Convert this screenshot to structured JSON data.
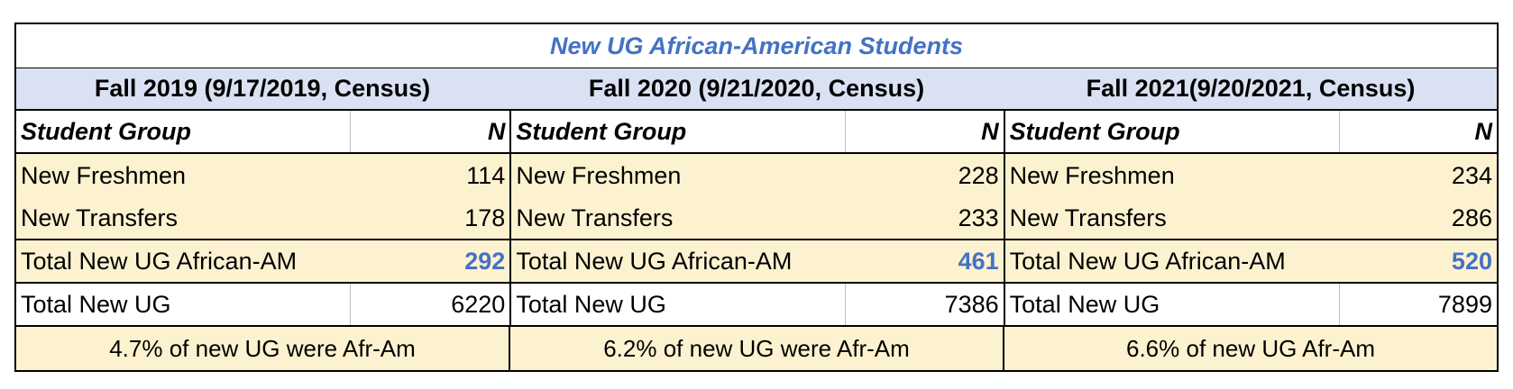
{
  "table": {
    "title": "New UG African-American Students",
    "columns": [
      {
        "fall": "Fall 2019 (9/17/2019, Census)",
        "header": {
          "group": "Student Group",
          "n": "N"
        },
        "rows": [
          {
            "label": "New Freshmen",
            "n": "114"
          },
          {
            "label": "New Transfers",
            "n": "178"
          }
        ],
        "total_afram": {
          "label": "Total New UG African-AM",
          "n": "292"
        },
        "total_ug": {
          "label": "Total New UG",
          "n": "6220"
        },
        "summary": "4.7% of new UG were Afr-Am"
      },
      {
        "fall": "Fall 2020 (9/21/2020, Census)",
        "header": {
          "group": "Student Group",
          "n": "N"
        },
        "rows": [
          {
            "label": "New Freshmen",
            "n": "228"
          },
          {
            "label": "New Transfers",
            "n": "233"
          }
        ],
        "total_afram": {
          "label": "Total New UG African-AM",
          "n": "461"
        },
        "total_ug": {
          "label": "Total New UG",
          "n": "7386"
        },
        "summary": "6.2% of new UG were Afr-Am"
      },
      {
        "fall": "Fall 2021(9/20/2021, Census)",
        "header": {
          "group": "Student Group",
          "n": "N"
        },
        "rows": [
          {
            "label": "New Freshmen",
            "n": "234"
          },
          {
            "label": "New Transfers",
            "n": "286"
          }
        ],
        "total_afram": {
          "label": "Total New UG African-AM",
          "n": "520"
        },
        "total_ug": {
          "label": "Total New UG",
          "n": "7899"
        },
        "summary": "6.6% of new UG Afr-Am"
      }
    ]
  },
  "colors": {
    "accent_blue": "#4472c4",
    "header_fill": "#d9e1f2",
    "row_fill": "#fdf2d0"
  }
}
